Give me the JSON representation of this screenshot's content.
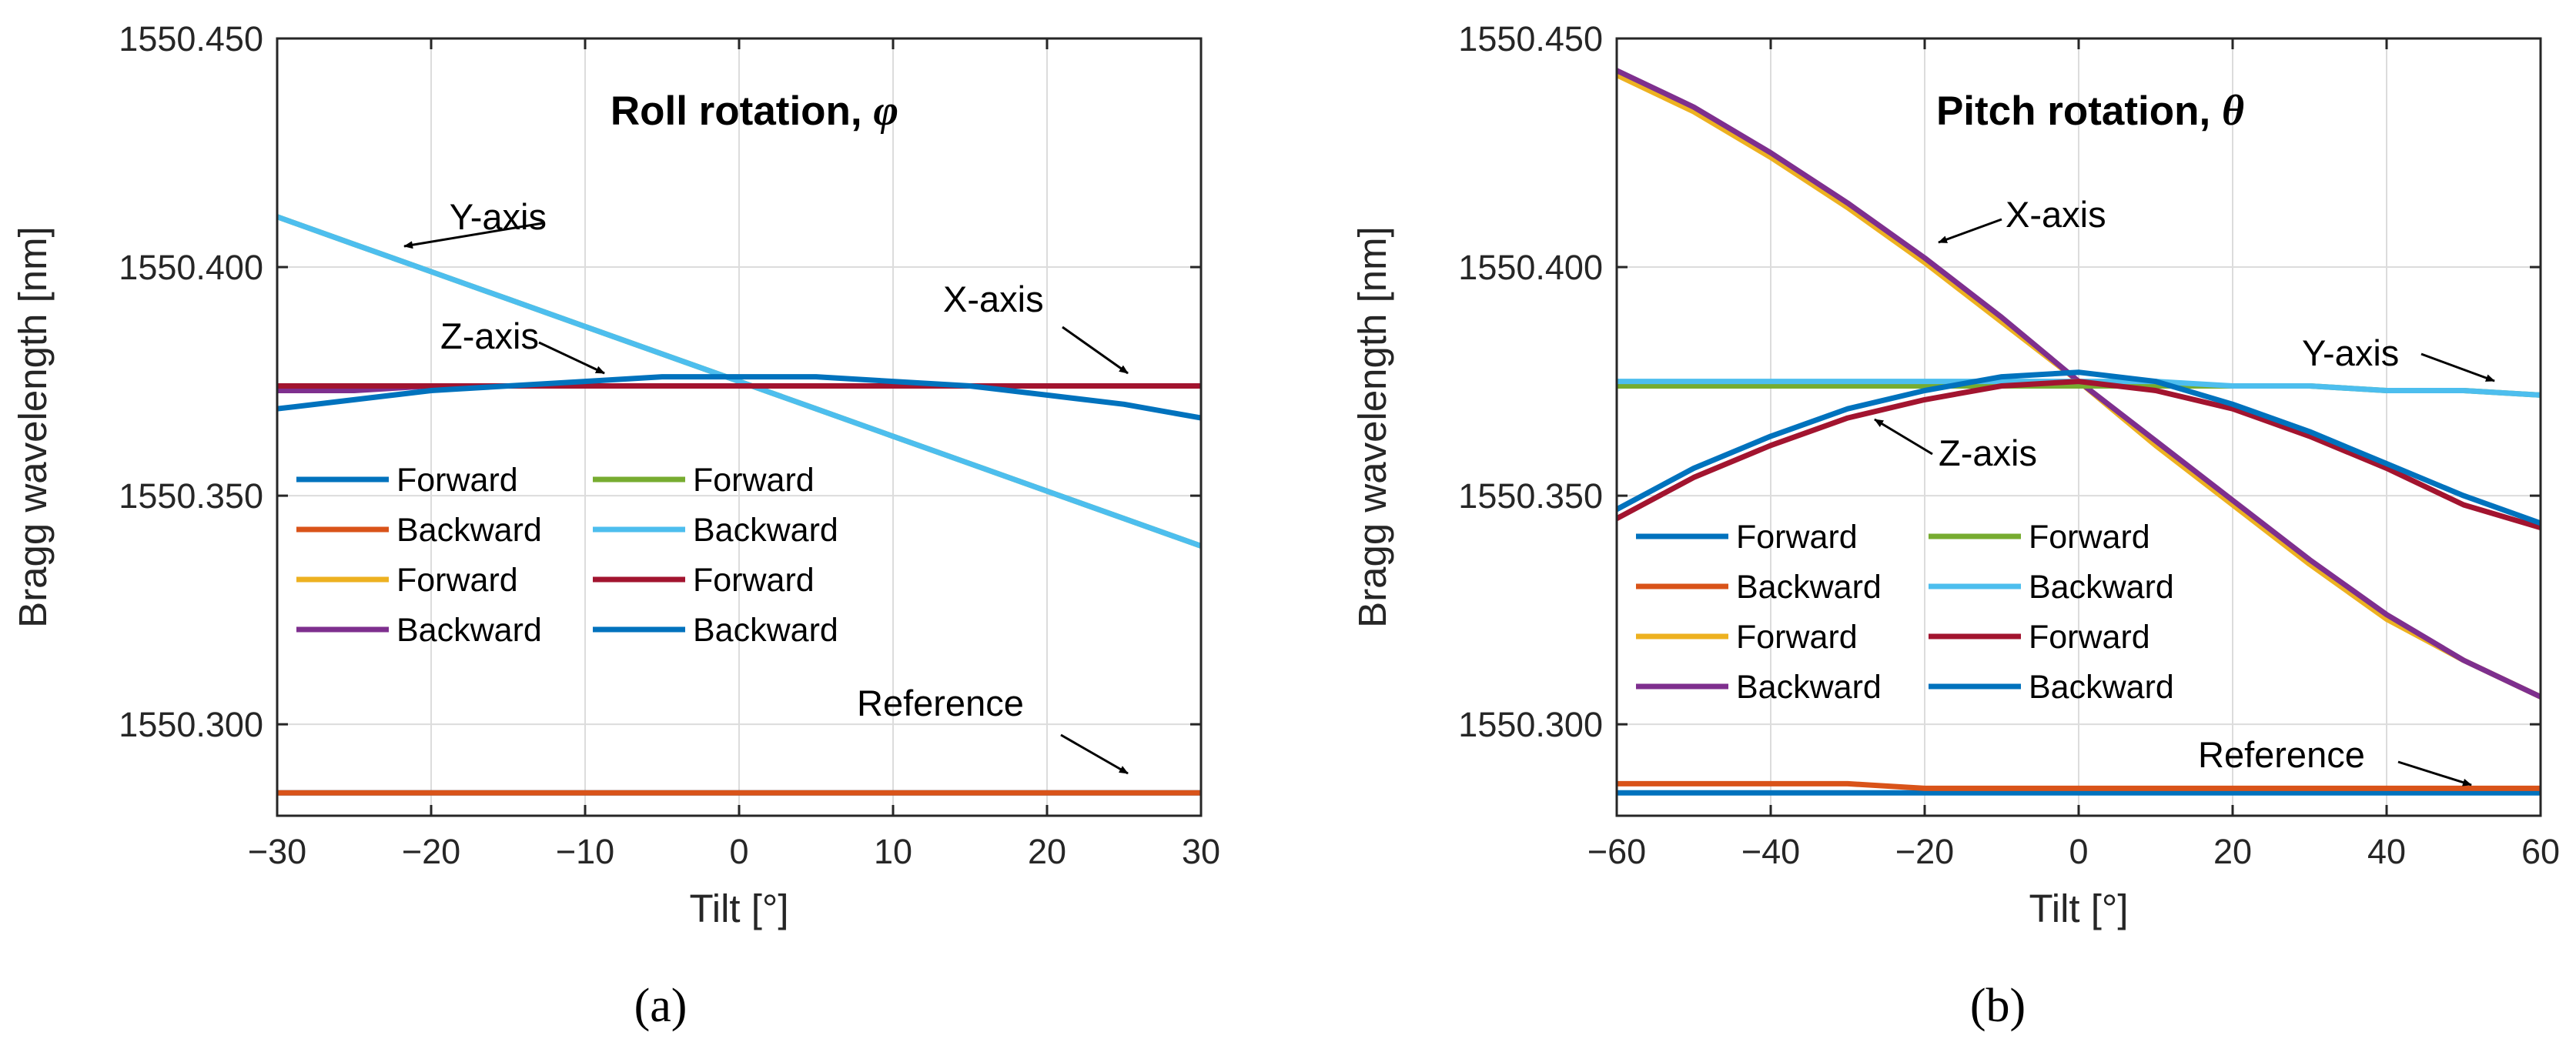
{
  "chart_data": [
    {
      "type": "line",
      "panel_label": "(a)",
      "title": "Roll rotation,",
      "title_symbol": "φ",
      "xlabel": "Tilt [°]",
      "ylabel": "Bragg wavelength [nm]",
      "xlim": [
        -30,
        30
      ],
      "ylim": [
        1550.28,
        1550.45
      ],
      "xticks": [
        -30,
        -20,
        -10,
        0,
        10,
        20,
        30
      ],
      "xtick_labels": [
        "−30",
        "−20",
        "−10",
        "0",
        "10",
        "20",
        "30"
      ],
      "yticks": [
        1550.3,
        1550.35,
        1550.4,
        1550.45
      ],
      "ytick_labels": [
        "1550.300",
        "1550.350",
        "1550.400",
        "1550.450"
      ],
      "grid": true,
      "legend_location": "center-left",
      "x": [
        -30,
        -25,
        -20,
        -15,
        -10,
        -5,
        0,
        5,
        10,
        15,
        20,
        25,
        30
      ],
      "series": [
        {
          "name": "Forward",
          "color": "#0072BD",
          "values": [
            1550.285,
            1550.285,
            1550.285,
            1550.285,
            1550.285,
            1550.285,
            1550.285,
            1550.285,
            1550.285,
            1550.285,
            1550.285,
            1550.285,
            1550.285
          ]
        },
        {
          "name": "Backward",
          "color": "#D95319",
          "values": [
            1550.285,
            1550.285,
            1550.285,
            1550.285,
            1550.285,
            1550.285,
            1550.285,
            1550.285,
            1550.285,
            1550.285,
            1550.285,
            1550.285,
            1550.285
          ]
        },
        {
          "name": "Forward",
          "color": "#EDB120",
          "values": [
            1550.374,
            1550.374,
            1550.374,
            1550.374,
            1550.374,
            1550.374,
            1550.374,
            1550.374,
            1550.374,
            1550.374,
            1550.374,
            1550.374,
            1550.374
          ]
        },
        {
          "name": "Backward",
          "color": "#7E2F8E",
          "values": [
            1550.373,
            1550.373,
            1550.374,
            1550.374,
            1550.374,
            1550.374,
            1550.374,
            1550.374,
            1550.374,
            1550.374,
            1550.374,
            1550.374,
            1550.374
          ]
        },
        {
          "name": "Forward",
          "color": "#77AC30",
          "values": [
            1550.411,
            1550.405,
            1550.399,
            1550.393,
            1550.387,
            1550.381,
            1550.375,
            1550.369,
            1550.363,
            1550.357,
            1550.351,
            1550.345,
            1550.339
          ]
        },
        {
          "name": "Backward",
          "color": "#4DBEEE",
          "values": [
            1550.411,
            1550.405,
            1550.399,
            1550.393,
            1550.387,
            1550.381,
            1550.375,
            1550.369,
            1550.363,
            1550.357,
            1550.351,
            1550.345,
            1550.339
          ]
        },
        {
          "name": "Forward",
          "color": "#A2142F",
          "values": [
            1550.374,
            1550.374,
            1550.374,
            1550.374,
            1550.374,
            1550.374,
            1550.374,
            1550.374,
            1550.374,
            1550.374,
            1550.374,
            1550.374,
            1550.374
          ]
        },
        {
          "name": "Backward",
          "color": "#0072BD",
          "values": [
            1550.369,
            1550.371,
            1550.373,
            1550.374,
            1550.375,
            1550.376,
            1550.376,
            1550.376,
            1550.375,
            1550.374,
            1550.372,
            1550.37,
            1550.367
          ]
        }
      ],
      "annotations": [
        {
          "text": "Y-axis"
        },
        {
          "text": "Z-axis"
        },
        {
          "text": "X-axis"
        },
        {
          "text": "Reference"
        }
      ]
    },
    {
      "type": "line",
      "panel_label": "(b)",
      "title": "Pitch rotation,",
      "title_symbol": "θ",
      "xlabel": "Tilt [°]",
      "ylabel": "Bragg wavelength [nm]",
      "xlim": [
        -60,
        60
      ],
      "ylim": [
        1550.28,
        1550.45
      ],
      "xticks": [
        -60,
        -40,
        -20,
        0,
        20,
        40,
        60
      ],
      "xtick_labels": [
        "−60",
        "−40",
        "−20",
        "0",
        "20",
        "40",
        "60"
      ],
      "yticks": [
        1550.3,
        1550.35,
        1550.4,
        1550.45
      ],
      "ytick_labels": [
        "1550.300",
        "1550.350",
        "1550.400",
        "1550.450"
      ],
      "grid": true,
      "legend_location": "bottom-left",
      "x": [
        -60,
        -50,
        -40,
        -30,
        -20,
        -10,
        0,
        10,
        20,
        30,
        40,
        50,
        60
      ],
      "series": [
        {
          "name": "Forward",
          "color": "#0072BD",
          "values": [
            1550.285,
            1550.285,
            1550.285,
            1550.285,
            1550.285,
            1550.285,
            1550.285,
            1550.285,
            1550.285,
            1550.285,
            1550.285,
            1550.285,
            1550.285
          ]
        },
        {
          "name": "Backward",
          "color": "#D95319",
          "values": [
            1550.287,
            1550.287,
            1550.287,
            1550.287,
            1550.286,
            1550.286,
            1550.286,
            1550.286,
            1550.286,
            1550.286,
            1550.286,
            1550.286,
            1550.286
          ]
        },
        {
          "name": "Forward",
          "color": "#EDB120",
          "values": [
            1550.442,
            1550.434,
            1550.424,
            1550.413,
            1550.401,
            1550.388,
            1550.375,
            1550.361,
            1550.348,
            1550.335,
            1550.323,
            1550.314,
            1550.306
          ]
        },
        {
          "name": "Backward",
          "color": "#7E2F8E",
          "values": [
            1550.443,
            1550.435,
            1550.425,
            1550.414,
            1550.402,
            1550.389,
            1550.375,
            1550.362,
            1550.349,
            1550.336,
            1550.324,
            1550.314,
            1550.306
          ]
        },
        {
          "name": "Forward",
          "color": "#77AC30",
          "values": [
            1550.374,
            1550.374,
            1550.374,
            1550.374,
            1550.374,
            1550.374,
            1550.374,
            1550.374,
            1550.374,
            1550.374,
            1550.373,
            1550.373,
            1550.372
          ]
        },
        {
          "name": "Backward",
          "color": "#4DBEEE",
          "values": [
            1550.375,
            1550.375,
            1550.375,
            1550.375,
            1550.375,
            1550.375,
            1550.375,
            1550.375,
            1550.374,
            1550.374,
            1550.373,
            1550.373,
            1550.372
          ]
        },
        {
          "name": "Forward",
          "color": "#A2142F",
          "values": [
            1550.345,
            1550.354,
            1550.361,
            1550.367,
            1550.371,
            1550.374,
            1550.375,
            1550.373,
            1550.369,
            1550.363,
            1550.356,
            1550.348,
            1550.343
          ]
        },
        {
          "name": "Backward",
          "color": "#0072BD",
          "values": [
            1550.347,
            1550.356,
            1550.363,
            1550.369,
            1550.373,
            1550.376,
            1550.377,
            1550.375,
            1550.37,
            1550.364,
            1550.357,
            1550.35,
            1550.344
          ]
        }
      ],
      "annotations": [
        {
          "text": "X-axis"
        },
        {
          "text": "Y-axis"
        },
        {
          "text": "Z-axis"
        },
        {
          "text": "Reference"
        }
      ]
    }
  ]
}
